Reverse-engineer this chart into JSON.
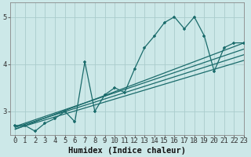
{
  "title": "",
  "xlabel": "Humidex (Indice chaleur)",
  "ylabel": "",
  "bg_color": "#cce8e8",
  "grid_color": "#aacccc",
  "line_color": "#1a6b6b",
  "xlim": [
    -0.5,
    23
  ],
  "ylim": [
    2.5,
    5.3
  ],
  "yticks": [
    3,
    4,
    5
  ],
  "xticks": [
    0,
    1,
    2,
    3,
    4,
    5,
    6,
    7,
    8,
    9,
    10,
    11,
    12,
    13,
    14,
    15,
    16,
    17,
    18,
    19,
    20,
    21,
    22,
    23
  ],
  "main_x": [
    0,
    1,
    2,
    3,
    4,
    5,
    6,
    7,
    8,
    9,
    10,
    11,
    12,
    13,
    14,
    15,
    16,
    17,
    18,
    19,
    20,
    21,
    22,
    23
  ],
  "main_y": [
    2.7,
    2.7,
    2.58,
    2.75,
    2.85,
    3.0,
    2.78,
    4.05,
    3.0,
    3.35,
    3.5,
    3.4,
    3.9,
    4.35,
    4.6,
    4.88,
    5.0,
    4.75,
    5.0,
    4.6,
    3.85,
    4.35,
    4.45,
    4.45
  ],
  "line1_x": [
    0,
    23
  ],
  "line1_y": [
    2.62,
    4.45
  ],
  "line2_x": [
    0,
    23
  ],
  "line2_y": [
    2.66,
    4.2
  ],
  "line3_x": [
    0,
    23
  ],
  "line3_y": [
    2.68,
    4.32
  ],
  "line4_x": [
    0,
    23
  ],
  "line4_y": [
    2.63,
    4.08
  ],
  "tick_fontsize": 6.5,
  "xlabel_fontsize": 7.5,
  "figsize": [
    3.2,
    2.0
  ],
  "dpi": 100
}
